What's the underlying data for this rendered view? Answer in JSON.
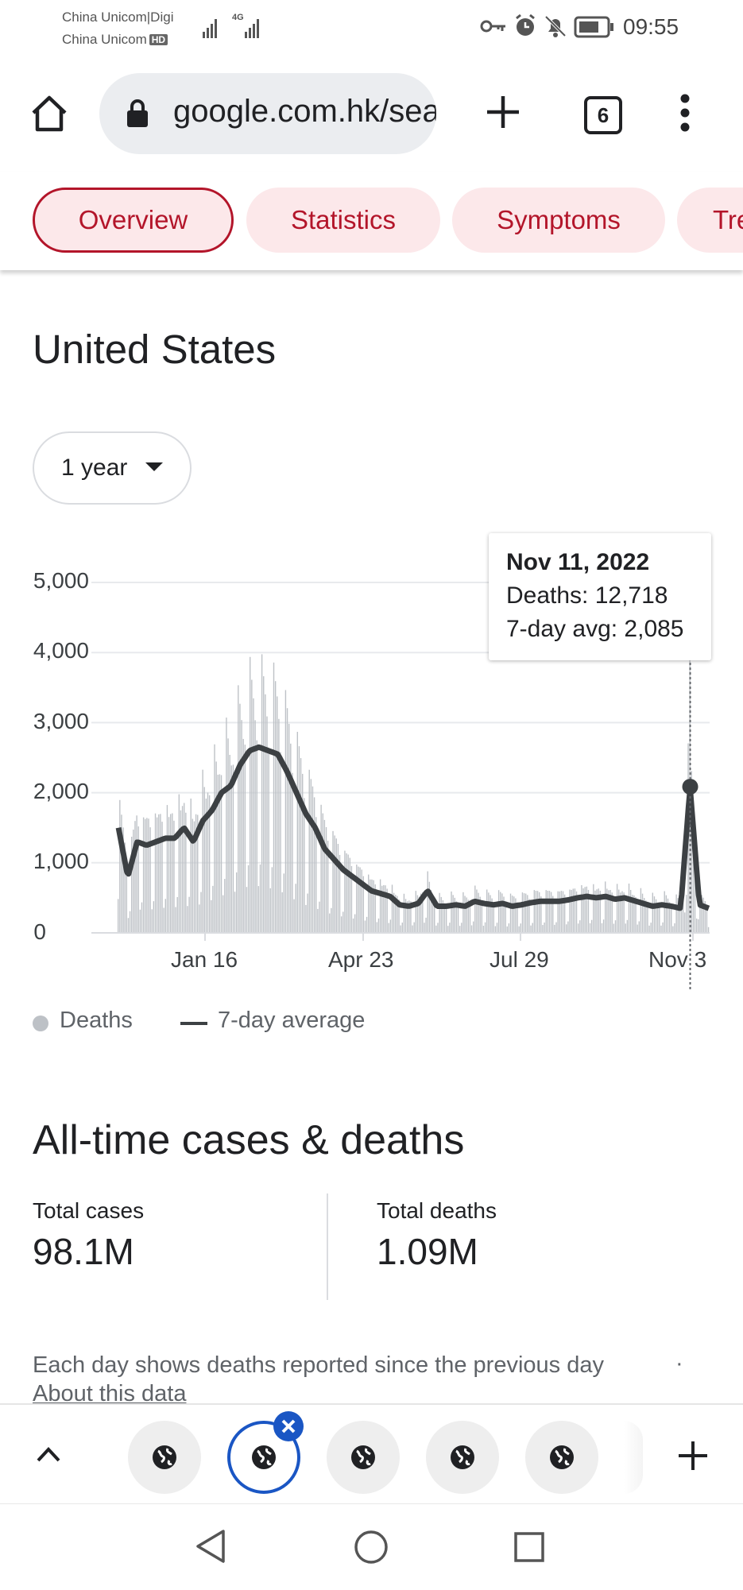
{
  "status_bar": {
    "carrier_1": "China Unicom|Digi",
    "carrier_2": "China Unicom",
    "carrier_2_badge": "HD",
    "network_badge": "4G",
    "time": "09:55",
    "icons": [
      "signal-icon",
      "key-icon",
      "alarm-icon",
      "bell-off-icon",
      "battery-icon"
    ]
  },
  "toolbar": {
    "url": "google.com.hk/search",
    "tab_count": "6",
    "icons": [
      "home-icon",
      "lock-icon",
      "plus-icon",
      "menu-icon"
    ]
  },
  "chips": [
    {
      "label": "Overview",
      "active": true
    },
    {
      "label": "Statistics",
      "active": false
    },
    {
      "label": "Symptoms",
      "active": false
    },
    {
      "label": "Treatments",
      "active": false
    }
  ],
  "content": {
    "title": "United States",
    "range_selector": "1 year"
  },
  "chart_data": {
    "type": "bar",
    "title": "",
    "xlabel": "",
    "ylabel": "",
    "ylim": [
      0,
      5000
    ],
    "yticks": [
      "5,000",
      "4,000",
      "3,000",
      "2,000",
      "1,000",
      "0"
    ],
    "xticks": [
      "Jan 16",
      "Apr 23",
      "Jul 29",
      "Nov 3"
    ],
    "grid": true,
    "series": [
      {
        "name": "Deaths",
        "kind": "bar",
        "color": "#bdc1c6",
        "sample_values_start_dec_2021": [
          1500,
          800,
          1300,
          1250,
          1300,
          1350,
          1350,
          1500,
          1300,
          1600,
          1750,
          2000,
          2100,
          2400,
          2600,
          2650,
          2600,
          2550,
          2300,
          2000,
          1700,
          1500,
          1200,
          1050,
          900,
          800,
          700,
          600,
          560,
          520,
          400,
          380,
          420,
          600,
          380,
          380,
          400,
          380,
          450,
          420,
          400,
          420,
          380,
          400,
          430,
          450,
          450,
          450,
          470,
          500,
          520,
          500,
          520,
          480,
          500,
          460,
          420,
          380,
          400,
          380,
          350,
          12718,
          400,
          350
        ]
      },
      {
        "name": "7-day average",
        "kind": "line",
        "color": "#3c4043"
      }
    ],
    "tooltip": {
      "date": "Nov 11, 2022",
      "deaths": "Deaths: 12,718",
      "avg": "7-day avg: 2,085"
    },
    "legend": [
      {
        "label": "Deaths",
        "marker": "dot"
      },
      {
        "label": "7-day average",
        "marker": "line"
      }
    ],
    "legend_position": "bottom-left"
  },
  "summary": {
    "title": "All-time cases & deaths",
    "total_cases_label": "Total cases",
    "total_cases_value": "98.1M",
    "total_deaths_label": "Total deaths",
    "total_deaths_value": "1.09M",
    "note": "Each day shows deaths reported since the previous day",
    "separator": "·",
    "about_link": "About this data"
  },
  "tab_strip": {
    "tab_icons": [
      "globe-icon",
      "globe-icon",
      "globe-icon",
      "globe-icon",
      "globe-icon"
    ],
    "active_index": 1
  },
  "nav_bar": {
    "icons": [
      "back-icon",
      "home-circle-icon",
      "recents-icon"
    ]
  }
}
